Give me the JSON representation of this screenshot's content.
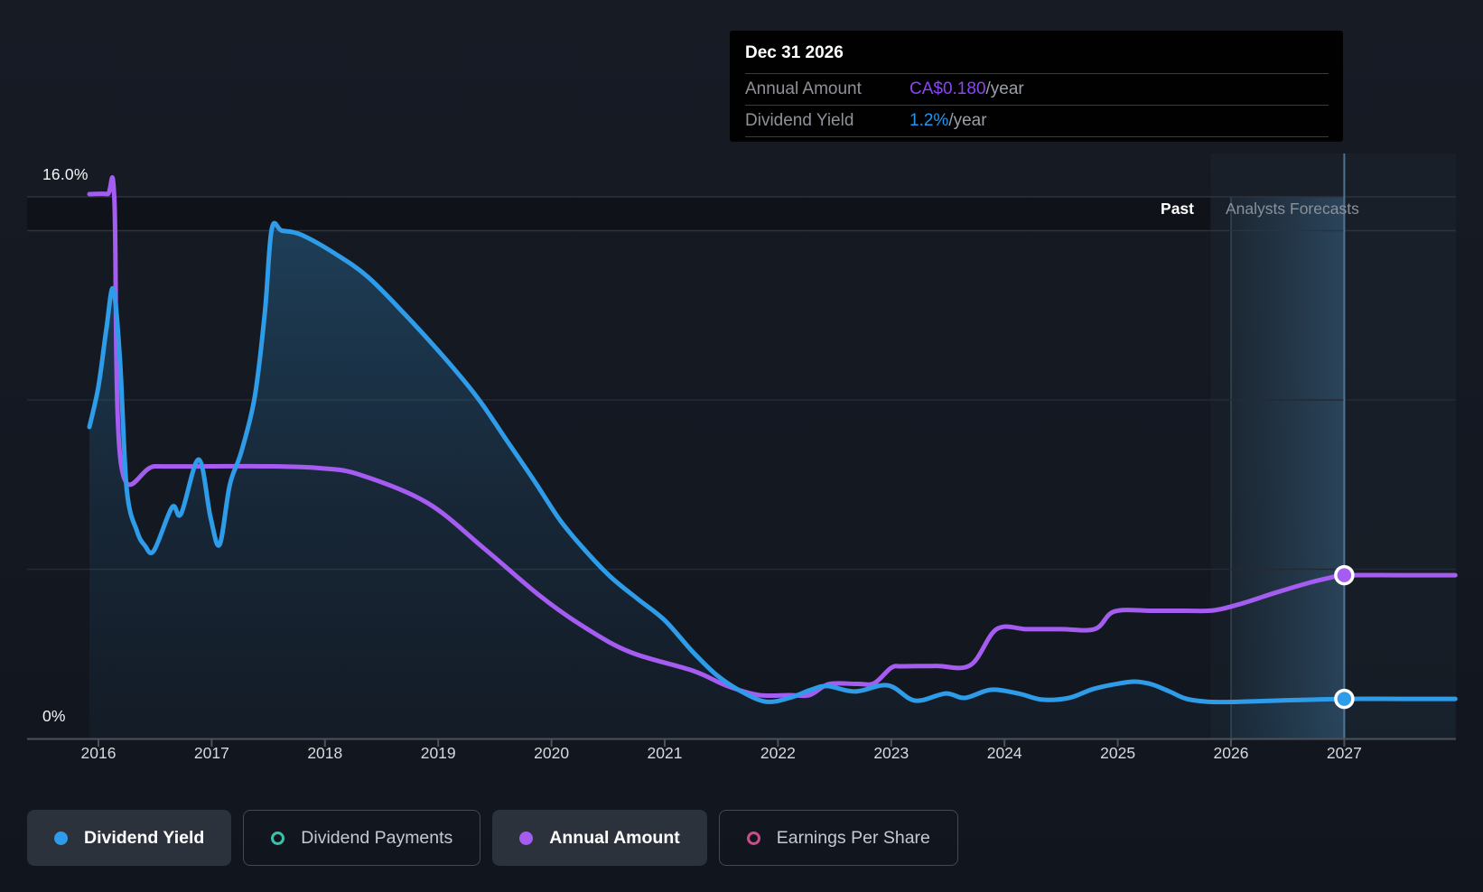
{
  "tooltip": {
    "date": "Dec 31 2026",
    "rows": [
      {
        "label": "Annual Amount",
        "value": "CA$0.180",
        "suffix": "/year",
        "color": "#8b45f5"
      },
      {
        "label": "Dividend Yield",
        "value": "1.2%",
        "suffix": "/year",
        "color": "#2196f3"
      }
    ]
  },
  "axis_labels": {
    "y_max": "16.0%",
    "y_min": "0%"
  },
  "zone_labels": {
    "past": "Past",
    "forecast": "Analysts Forecasts"
  },
  "legend": [
    {
      "label": "Dividend Yield",
      "color": "#2e9ce8",
      "filled": true,
      "active": true
    },
    {
      "label": "Dividend Payments",
      "color": "#3cc0ae",
      "filled": false,
      "active": false
    },
    {
      "label": "Annual Amount",
      "color": "#a55cf1",
      "filled": true,
      "active": true
    },
    {
      "label": "Earnings Per Share",
      "color": "#cc4b8c",
      "filled": false,
      "active": false
    }
  ],
  "chart_data": {
    "type": "line",
    "title": "Dividend yield history and forecast",
    "x_ticks": [
      "2016",
      "2017",
      "2018",
      "2019",
      "2020",
      "2021",
      "2022",
      "2023",
      "2024",
      "2025",
      "2026",
      "2027"
    ],
    "x_range": [
      2015.92,
      2027.98
    ],
    "yield_axis": {
      "min": 0,
      "max": 16,
      "unit": "%",
      "gridlines": [
        16,
        15,
        10,
        5
      ],
      "label_max": "16.0%",
      "label_min": "0%"
    },
    "amount_axis": {
      "min": 0,
      "max": 0.6,
      "unit": "CA$"
    },
    "past_until": 2025.82,
    "band_from": 2026.0,
    "hover_x": 2027.0,
    "grid_on": true,
    "series": [
      {
        "name": "Dividend Yield",
        "axis": "yield",
        "color": "#2e9ce8",
        "area": true,
        "points": [
          [
            2015.92,
            9.2
          ],
          [
            2016.0,
            10.4
          ],
          [
            2016.07,
            12.1
          ],
          [
            2016.13,
            13.28
          ],
          [
            2016.19,
            11.2
          ],
          [
            2016.25,
            7.36
          ],
          [
            2016.34,
            6.13
          ],
          [
            2016.41,
            5.7
          ],
          [
            2016.49,
            5.55
          ],
          [
            2016.65,
            6.83
          ],
          [
            2016.73,
            6.64
          ],
          [
            2016.885,
            8.24
          ],
          [
            2016.99,
            6.53
          ],
          [
            2017.07,
            5.73
          ],
          [
            2017.16,
            7.5
          ],
          [
            2017.26,
            8.45
          ],
          [
            2017.38,
            10.1
          ],
          [
            2017.47,
            12.6
          ],
          [
            2017.53,
            15.05
          ],
          [
            2017.62,
            15.0
          ],
          [
            2017.79,
            14.88
          ],
          [
            2018.1,
            14.3
          ],
          [
            2018.38,
            13.63
          ],
          [
            2018.7,
            12.55
          ],
          [
            2019.06,
            11.23
          ],
          [
            2019.35,
            10.05
          ],
          [
            2019.6,
            8.83
          ],
          [
            2019.85,
            7.6
          ],
          [
            2020.08,
            6.43
          ],
          [
            2020.3,
            5.55
          ],
          [
            2020.53,
            4.75
          ],
          [
            2020.77,
            4.1
          ],
          [
            2021.0,
            3.49
          ],
          [
            2021.25,
            2.55
          ],
          [
            2021.45,
            1.9
          ],
          [
            2021.66,
            1.42
          ],
          [
            2021.89,
            1.09
          ],
          [
            2022.1,
            1.2
          ],
          [
            2022.3,
            1.45
          ],
          [
            2022.44,
            1.55
          ],
          [
            2022.68,
            1.39
          ],
          [
            2022.97,
            1.57
          ],
          [
            2023.21,
            1.12
          ],
          [
            2023.48,
            1.33
          ],
          [
            2023.65,
            1.2
          ],
          [
            2023.88,
            1.44
          ],
          [
            2024.12,
            1.33
          ],
          [
            2024.33,
            1.15
          ],
          [
            2024.57,
            1.2
          ],
          [
            2024.78,
            1.46
          ],
          [
            2025.0,
            1.62
          ],
          [
            2025.15,
            1.68
          ],
          [
            2025.3,
            1.6
          ],
          [
            2025.45,
            1.4
          ],
          [
            2025.6,
            1.18
          ],
          [
            2025.78,
            1.09
          ],
          [
            2026.0,
            1.08
          ],
          [
            2026.4,
            1.12
          ],
          [
            2027.0,
            1.17
          ],
          [
            2027.5,
            1.17
          ],
          [
            2027.98,
            1.17
          ]
        ]
      },
      {
        "name": "Annual Amount",
        "axis": "amount",
        "color": "#a55cf1",
        "area": false,
        "points": [
          [
            2015.92,
            0.6
          ],
          [
            2016.08,
            0.6
          ],
          [
            2016.14,
            0.595
          ],
          [
            2016.2,
            0.302
          ],
          [
            2016.5,
            0.3
          ],
          [
            2017.0,
            0.3
          ],
          [
            2017.5,
            0.3
          ],
          [
            2017.95,
            0.298
          ],
          [
            2018.3,
            0.291
          ],
          [
            2018.9,
            0.26
          ],
          [
            2019.4,
            0.21
          ],
          [
            2019.9,
            0.157
          ],
          [
            2020.3,
            0.122
          ],
          [
            2020.7,
            0.095
          ],
          [
            2021.25,
            0.0746
          ],
          [
            2021.55,
            0.058
          ],
          [
            2021.83,
            0.048
          ],
          [
            2022.1,
            0.0478
          ],
          [
            2022.28,
            0.048
          ],
          [
            2022.45,
            0.06
          ],
          [
            2022.7,
            0.0602
          ],
          [
            2022.85,
            0.061
          ],
          [
            2023.0,
            0.078
          ],
          [
            2023.1,
            0.0796
          ],
          [
            2023.4,
            0.08
          ],
          [
            2023.7,
            0.081
          ],
          [
            2023.93,
            0.1205
          ],
          [
            2024.2,
            0.1205
          ],
          [
            2024.5,
            0.1205
          ],
          [
            2024.8,
            0.1208
          ],
          [
            2024.97,
            0.14
          ],
          [
            2025.3,
            0.1408
          ],
          [
            2025.6,
            0.1408
          ],
          [
            2025.85,
            0.1413
          ],
          [
            2026.1,
            0.149
          ],
          [
            2026.4,
            0.161
          ],
          [
            2026.7,
            0.172
          ],
          [
            2026.9,
            0.178
          ],
          [
            2027.0,
            0.18
          ],
          [
            2027.5,
            0.18
          ],
          [
            2027.98,
            0.18
          ]
        ]
      }
    ],
    "markers": [
      {
        "series": "Annual Amount",
        "x": 2027.0,
        "value": 0.18,
        "display": "CA$0.180/year"
      },
      {
        "series": "Dividend Yield",
        "x": 2027.0,
        "value": 1.17,
        "display": "1.2%/year"
      }
    ],
    "legend_position": "bottom"
  }
}
